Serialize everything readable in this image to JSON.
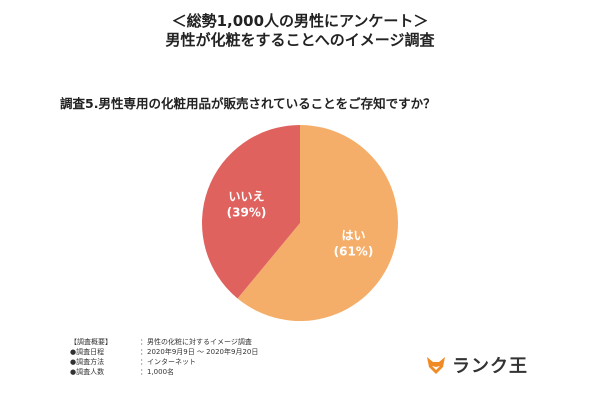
{
  "header": {
    "line1": "＜総勢1,000人の男性にアンケート＞",
    "line2": "男性が化粧をすることへのイメージ調査"
  },
  "question": "調査5.男性専用の化粧用品が販売されていることをご存知ですか？",
  "chart_data": {
    "type": "pie",
    "title": "調査5.男性専用の化粧用品が販売されていることをご存知ですか？",
    "slices": [
      {
        "label": "はい",
        "percent_label": "(61%)",
        "value": 61,
        "color": "#F5AE6A"
      },
      {
        "label": "いいえ",
        "percent_label": "(39%)",
        "value": 39,
        "color": "#E0625F"
      }
    ]
  },
  "overview": {
    "heading": "【調査概要】",
    "heading_value": "：男性の化粧に対するイメージ調査",
    "rows": [
      {
        "key": "●調査日程",
        "value": "：2020年9月9日 ～ 2020年9月20日"
      },
      {
        "key": "●調査方法",
        "value": "：インターネット"
      },
      {
        "key": "●調査人数",
        "value": "：1,000名"
      }
    ]
  },
  "brand": {
    "name": "ランク王",
    "icon": "fox-icon",
    "accent": "#F08A24"
  }
}
